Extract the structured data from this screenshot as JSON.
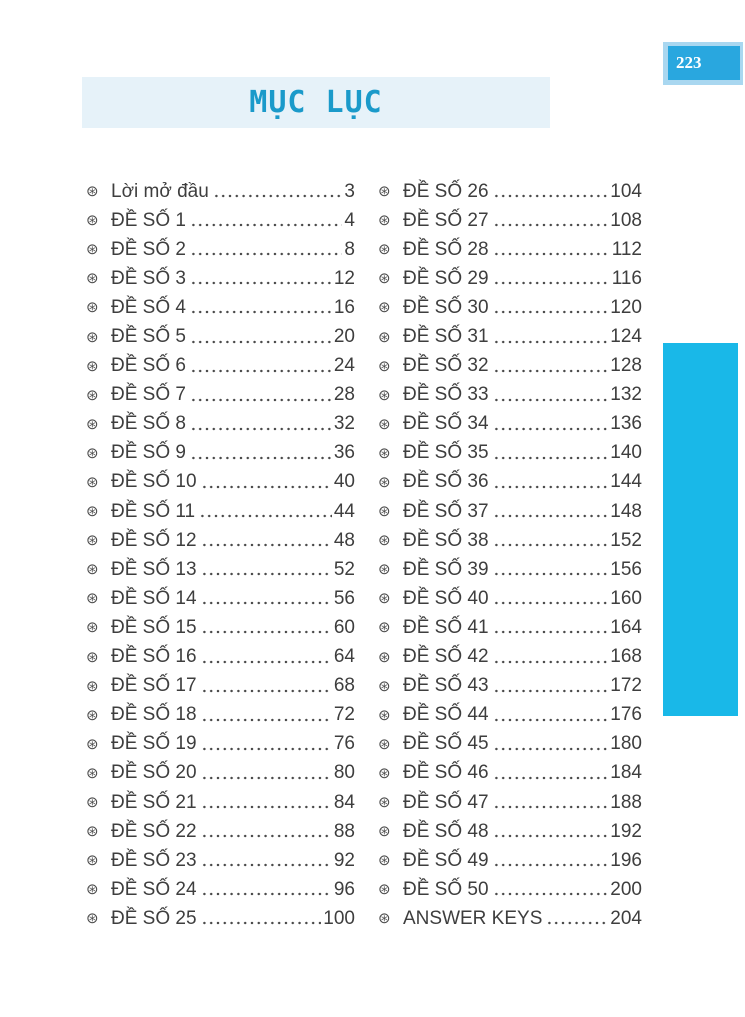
{
  "page": {
    "number": "223",
    "title": "MỤC LỤC"
  },
  "bullet_glyph": "⊛",
  "bullet_icon": "flower-pinwheel-icon",
  "colors": {
    "side_rect_cyan": "#19b8e8",
    "badge_fill": "#29a7df",
    "badge_border": "#a9d7f0",
    "title_bar_bg": "#e6f2f9",
    "title_text": "#1a9aca",
    "body_text": "#3e3e3e"
  },
  "toc": {
    "left": [
      {
        "label": "Lời mở đầu",
        "page": "3"
      },
      {
        "label": "ĐỀ SỐ 1",
        "page": "4"
      },
      {
        "label": "ĐỀ SỐ 2",
        "page": "8"
      },
      {
        "label": "ĐỀ SỐ 3",
        "page": "12"
      },
      {
        "label": "ĐỀ SỐ 4",
        "page": "16"
      },
      {
        "label": "ĐỀ SỐ 5",
        "page": "20"
      },
      {
        "label": "ĐỀ SỐ 6",
        "page": "24"
      },
      {
        "label": "ĐỀ SỐ 7",
        "page": "28"
      },
      {
        "label": "ĐỀ SỐ 8",
        "page": "32"
      },
      {
        "label": "ĐỀ SỐ 9",
        "page": "36"
      },
      {
        "label": "ĐỀ SỐ 10",
        "page": "40"
      },
      {
        "label": "ĐỀ SỐ 11",
        "page": "44"
      },
      {
        "label": "ĐỀ SỐ 12",
        "page": "48"
      },
      {
        "label": "ĐỀ SỐ 13",
        "page": "52"
      },
      {
        "label": "ĐỀ SỐ 14",
        "page": "56"
      },
      {
        "label": "ĐỀ SỐ 15",
        "page": "60"
      },
      {
        "label": "ĐỀ SỐ 16",
        "page": "64"
      },
      {
        "label": "ĐỀ SỐ 17",
        "page": "68"
      },
      {
        "label": "ĐỀ SỐ 18",
        "page": "72"
      },
      {
        "label": "ĐỀ SỐ 19",
        "page": "76"
      },
      {
        "label": "ĐỀ SỐ 20",
        "page": "80"
      },
      {
        "label": "ĐỀ SỐ 21",
        "page": "84"
      },
      {
        "label": "ĐỀ SỐ 22",
        "page": "88"
      },
      {
        "label": "ĐỀ SỐ 23",
        "page": "92"
      },
      {
        "label": "ĐỀ SỐ 24",
        "page": "96"
      },
      {
        "label": "ĐỀ SỐ 25",
        "page": "100"
      }
    ],
    "right": [
      {
        "label": "ĐỀ SỐ 26",
        "page": "104"
      },
      {
        "label": "ĐỀ SỐ 27",
        "page": "108"
      },
      {
        "label": "ĐỀ SỐ 28",
        "page": "112"
      },
      {
        "label": "ĐỀ SỐ 29",
        "page": "116"
      },
      {
        "label": "ĐỀ SỐ 30",
        "page": "120"
      },
      {
        "label": "ĐỀ SỐ 31",
        "page": "124"
      },
      {
        "label": "ĐỀ SỐ 32",
        "page": "128"
      },
      {
        "label": "ĐỀ SỐ 33",
        "page": "132"
      },
      {
        "label": "ĐỀ SỐ 34",
        "page": "136"
      },
      {
        "label": "ĐỀ SỐ 35",
        "page": "140"
      },
      {
        "label": "ĐỀ SỐ 36",
        "page": "144"
      },
      {
        "label": "ĐỀ SỐ 37",
        "page": "148"
      },
      {
        "label": "ĐỀ SỐ 38",
        "page": "152"
      },
      {
        "label": "ĐỀ SỐ 39",
        "page": "156"
      },
      {
        "label": "ĐỀ SỐ 40",
        "page": "160"
      },
      {
        "label": "ĐỀ SỐ 41",
        "page": "164"
      },
      {
        "label": "ĐỀ SỐ 42",
        "page": "168"
      },
      {
        "label": "ĐỀ SỐ 43",
        "page": "172"
      },
      {
        "label": "ĐỀ SỐ 44",
        "page": "176"
      },
      {
        "label": "ĐỀ SỐ 45",
        "page": "180"
      },
      {
        "label": "ĐỀ SỐ 46",
        "page": "184"
      },
      {
        "label": "ĐỀ SỐ 47",
        "page": "188"
      },
      {
        "label": "ĐỀ SỐ 48",
        "page": "192"
      },
      {
        "label": "ĐỀ SỐ 49",
        "page": "196"
      },
      {
        "label": "ĐỀ SỐ 50",
        "page": "200"
      },
      {
        "label": "ANSWER KEYS",
        "page": "204"
      }
    ]
  }
}
